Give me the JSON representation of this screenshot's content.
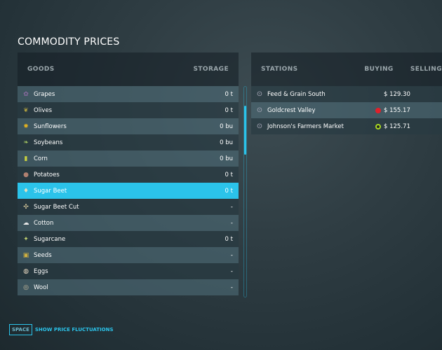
{
  "title": "COMMODITY PRICES",
  "goods": {
    "header_goods": "GOODS",
    "header_storage": "STORAGE",
    "items": [
      {
        "label": "Grapes",
        "storage": "0 t",
        "icon": "grapes-icon",
        "glyph": "✿",
        "color": "#8a6aa0"
      },
      {
        "label": "Olives",
        "storage": "0 t",
        "icon": "olives-icon",
        "glyph": "❦",
        "color": "#b0a040"
      },
      {
        "label": "Sunflowers",
        "storage": "0 bu",
        "icon": "sunflower-icon",
        "glyph": "✹",
        "color": "#e0b020"
      },
      {
        "label": "Soybeans",
        "storage": "0 bu",
        "icon": "soybeans-icon",
        "glyph": "❧",
        "color": "#a0c060"
      },
      {
        "label": "Corn",
        "storage": "0 bu",
        "icon": "corn-icon",
        "glyph": "▮",
        "color": "#c8d040"
      },
      {
        "label": "Potatoes",
        "storage": "0 t",
        "icon": "potatoes-icon",
        "glyph": "●",
        "color": "#b08070"
      },
      {
        "label": "Sugar Beet",
        "storage": "0 t",
        "icon": "sugar-beet-icon",
        "glyph": "♦",
        "color": "#e0e0c0"
      },
      {
        "label": "Sugar Beet Cut",
        "storage": "-",
        "icon": "sugar-beet-cut-icon",
        "glyph": "✣",
        "color": "#e0d0a0"
      },
      {
        "label": "Cotton",
        "storage": "-",
        "icon": "cotton-icon",
        "glyph": "☁",
        "color": "#e8e8e8"
      },
      {
        "label": "Sugarcane",
        "storage": "0 t",
        "icon": "sugarcane-icon",
        "glyph": "✦",
        "color": "#c0d070"
      },
      {
        "label": "Seeds",
        "storage": "-",
        "icon": "seeds-icon",
        "glyph": "▣",
        "color": "#d0b040"
      },
      {
        "label": "Eggs",
        "storage": "-",
        "icon": "eggs-icon",
        "glyph": "◍",
        "color": "#e8d8c0"
      },
      {
        "label": "Wool",
        "storage": "-",
        "icon": "wool-icon",
        "glyph": "◎",
        "color": "#d0c0a0"
      }
    ],
    "selected": 6
  },
  "stations": {
    "header_stations": "STATIONS",
    "header_buying": "BUYING",
    "header_selling": "SELLING",
    "items": [
      {
        "label": "Feed & Grain South",
        "buying": "$ 129.30",
        "trend": "none"
      },
      {
        "label": "Goldcrest Valley",
        "buying": "$ 155.17",
        "trend": "red"
      },
      {
        "label": "Johnson's Farmers Market",
        "buying": "$ 125.71",
        "trend": "green"
      }
    ]
  },
  "colors": {
    "accent": "#2bc3ea",
    "trend_red": "#e0202a",
    "trend_green": "#a8d820"
  },
  "footer": {
    "key": "SPACE",
    "label": "SHOW PRICE FLUCTUATIONS"
  }
}
